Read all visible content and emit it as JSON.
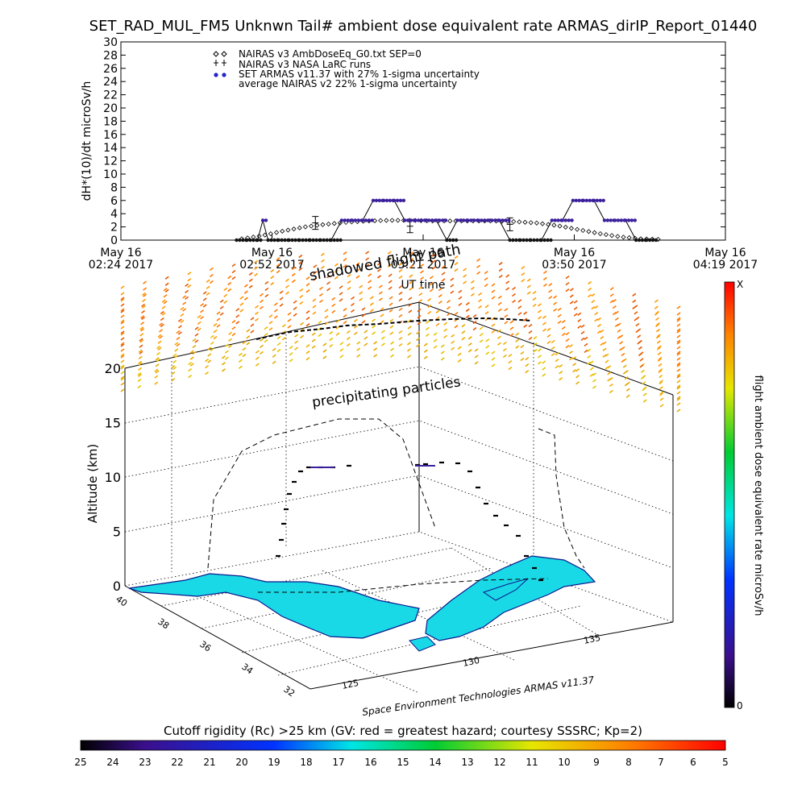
{
  "title": "SET_RAD_MUL_FM5 Unknwn Tail#  ambient dose equivalent rate ARMAS_dirIP_Report_01440",
  "chart_data": [
    {
      "type": "line",
      "ylabel": "dH*(10)/dt microSv/h",
      "xlabel": "UT time",
      "ylim": [
        0,
        30
      ],
      "yticks": [
        0,
        2,
        4,
        6,
        8,
        10,
        12,
        14,
        16,
        18,
        20,
        22,
        24,
        26,
        28,
        30
      ],
      "xlim_minutes": [
        0,
        115
      ],
      "xticks": [
        {
          "line1": "May 16",
          "line2": "02:24 2017"
        },
        {
          "line1": "May 16",
          "line2": "02:52 2017"
        },
        {
          "line1": "May 16",
          "line2": "03:21 2017"
        },
        {
          "line1": "May 16",
          "line2": "03:50 2017"
        },
        {
          "line1": "May 16",
          "line2": "04:19 2017"
        }
      ],
      "legend": [
        "NAIRAS v3 AmbDoseEq_G0.txt SEP=0",
        "NAIRAS v3 NASA LaRC runs",
        "SET ARMAS v11.37 with 27% 1-sigma uncertainty",
        "average NAIRAS v2 22% 1-sigma uncertainty"
      ],
      "series": [
        {
          "name": "NAIRAS v3 AmbDoseEq_G0.txt SEP=0",
          "x": [
            23,
            27,
            31,
            35,
            39,
            43,
            47,
            51,
            55,
            59,
            63,
            67,
            71,
            75,
            79,
            83,
            87,
            91,
            95,
            99,
            103
          ],
          "y": [
            0.2,
            0.7,
            1.4,
            2.0,
            2.4,
            2.7,
            2.9,
            3.0,
            3.0,
            2.9,
            2.9,
            2.9,
            2.9,
            2.8,
            2.6,
            2.2,
            1.6,
            1.0,
            0.5,
            0.2,
            0.1
          ]
        },
        {
          "name": "NAIRAS v3 NASA LaRC runs",
          "x": [
            37,
            55,
            74
          ],
          "y": [
            2.6,
            2.1,
            2.4
          ]
        },
        {
          "name": "SET ARMAS v11.37 with 27% 1-sigma uncertainty",
          "color": "#3a1f9c",
          "x": [
            22,
            24,
            26,
            27,
            28,
            30,
            32,
            34,
            36,
            38,
            40,
            42,
            44,
            46,
            48,
            50,
            52,
            54,
            56,
            58,
            60,
            62,
            64,
            66,
            68,
            70,
            72,
            74,
            76,
            78,
            80,
            82,
            84,
            86,
            88,
            90,
            92,
            94,
            96,
            98,
            100,
            102
          ],
          "y": [
            0,
            0,
            0,
            3,
            0,
            0,
            0,
            0,
            0,
            0,
            0,
            3,
            3,
            3,
            6,
            6,
            6,
            3,
            3,
            3,
            3,
            0,
            3,
            3,
            3,
            3,
            3,
            0,
            0,
            0,
            0,
            3,
            3,
            6,
            6,
            6,
            3,
            3,
            3,
            0,
            0,
            0
          ]
        }
      ]
    },
    {
      "type": "scatter",
      "subtype": "3d flight track",
      "zlabel": "Altitude (km)",
      "zticks": [
        "0",
        "5",
        "10",
        "15",
        "20"
      ],
      "lat_ticks": [
        "40",
        "38",
        "36",
        "34",
        "32"
      ],
      "lon_ticks": [
        "125",
        "130",
        "135"
      ],
      "annotations": [
        "shadowed flight path",
        "precipitating particles"
      ],
      "credit": "Space Environment Technologies ARMAS v11.37",
      "land_color": "#1ad9e6",
      "colorbar": {
        "label": "flight ambient dose equivalent rate microSv/h",
        "top_label": "X",
        "bottom_label": "0",
        "colors": [
          "#000000",
          "#3b0f8c",
          "#0033ff",
          "#00e5e5",
          "#00cc33",
          "#e6e600",
          "#ff8000",
          "#ff0000"
        ]
      }
    },
    {
      "type": "heatmap",
      "subtype": "colorbar",
      "title": "Cutoff rigidity (Rc) >25 km (GV: red = greatest hazard; courtesy SSSRC; Kp=2)",
      "tick_labels": [
        "25",
        "24",
        "23",
        "22",
        "21",
        "20",
        "19",
        "18",
        "17",
        "16",
        "15",
        "14",
        "13",
        "12",
        "11",
        "10",
        "9",
        "8",
        "7",
        "6",
        "5"
      ],
      "colors": [
        "#000000",
        "#3b0f8c",
        "#0033ff",
        "#00e5e5",
        "#00cc33",
        "#e6e600",
        "#ff8000",
        "#ff0000"
      ]
    }
  ]
}
